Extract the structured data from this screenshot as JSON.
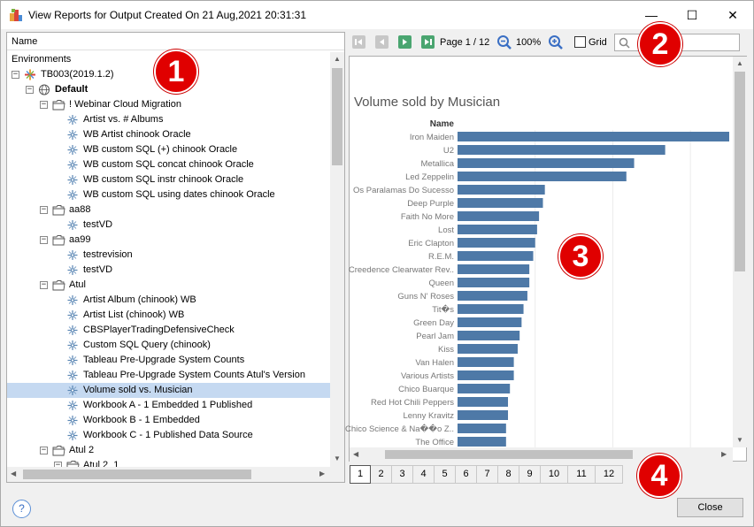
{
  "window": {
    "title": "View Reports for Output Created On 21 Aug,2021 20:31:31",
    "minimize_glyph": "—",
    "maximize_glyph": "☐",
    "close_glyph": "✕"
  },
  "tree": {
    "column_header": "Name",
    "root_label": "Environments",
    "rows": [
      {
        "label": "TB003(2019.1.2)",
        "level": 0,
        "expander": "−",
        "icon": "server-icon"
      },
      {
        "label": "Default",
        "level": 1,
        "expander": "−",
        "icon": "globe-icon",
        "bold": true
      },
      {
        "label": "! Webinar Cloud Migration",
        "level": 2,
        "expander": "−",
        "icon": "folder-icon"
      },
      {
        "label": "Artist vs. # Albums",
        "level": 3,
        "icon": "workbook-icon"
      },
      {
        "label": "WB Artist chinook Oracle",
        "level": 3,
        "icon": "workbook-icon"
      },
      {
        "label": "WB custom SQL (+) chinook Oracle",
        "level": 3,
        "icon": "workbook-icon"
      },
      {
        "label": "WB custom SQL concat chinook Oracle",
        "level": 3,
        "icon": "workbook-icon"
      },
      {
        "label": "WB custom SQL instr chinook Oracle",
        "level": 3,
        "icon": "workbook-icon"
      },
      {
        "label": "WB custom SQL using dates chinook Oracle",
        "level": 3,
        "icon": "workbook-icon"
      },
      {
        "label": "aa88",
        "level": 2,
        "expander": "−",
        "icon": "folder-icon"
      },
      {
        "label": "testVD",
        "level": 3,
        "icon": "workbook-icon"
      },
      {
        "label": "aa99",
        "level": 2,
        "expander": "−",
        "icon": "folder-icon"
      },
      {
        "label": "testrevision",
        "level": 3,
        "icon": "workbook-icon"
      },
      {
        "label": "testVD",
        "level": 3,
        "icon": "workbook-icon"
      },
      {
        "label": "Atul",
        "level": 2,
        "expander": "−",
        "icon": "folder-icon"
      },
      {
        "label": "Artist Album (chinook) WB",
        "level": 3,
        "icon": "workbook-icon"
      },
      {
        "label": "Artist List (chinook) WB",
        "level": 3,
        "icon": "workbook-icon"
      },
      {
        "label": "CBSPlayerTradingDefensiveCheck",
        "level": 3,
        "icon": "workbook-icon"
      },
      {
        "label": "Custom SQL  Query (chinook)",
        "level": 3,
        "icon": "workbook-icon"
      },
      {
        "label": "Tableau Pre-Upgrade System Counts",
        "level": 3,
        "icon": "workbook-icon"
      },
      {
        "label": "Tableau Pre-Upgrade System Counts Atul's Version",
        "level": 3,
        "icon": "workbook-icon"
      },
      {
        "label": "Volume sold vs. Musician",
        "level": 3,
        "icon": "workbook-icon",
        "selected": true
      },
      {
        "label": "Workbook A - 1 Embedded 1 Published",
        "level": 3,
        "icon": "workbook-icon"
      },
      {
        "label": "Workbook B - 1 Embedded",
        "level": 3,
        "icon": "workbook-icon"
      },
      {
        "label": "Workbook C - 1 Published Data Source",
        "level": 3,
        "icon": "workbook-icon"
      },
      {
        "label": "Atul 2",
        "level": 2,
        "expander": "−",
        "icon": "folder-icon"
      },
      {
        "label": "Atul 2_1",
        "level": 3,
        "expander": "−",
        "icon": "folder-icon"
      }
    ]
  },
  "toolbar": {
    "page_label": "Page 1 / 12",
    "zoom_label": "100%",
    "grid_label": "Grid",
    "search_placeholder": ""
  },
  "chart_data": {
    "type": "bar",
    "orientation": "horizontal",
    "title": "Volume sold by Musician",
    "ylabel": "Name",
    "xlabel": "",
    "categories": [
      "Iron Maiden",
      "U2",
      "Metallica",
      "Led Zeppelin",
      "Os Paralamas Do Sucesso",
      "Deep Purple",
      "Faith No More",
      "Lost",
      "Eric Clapton",
      "R.E.M.",
      "Creedence Clearwater Rev..",
      "Queen",
      "Guns N' Roses",
      "Tit�s",
      "Green Day",
      "Pearl Jam",
      "Kiss",
      "Van Halen",
      "Various Artists",
      "Chico Buarque",
      "Red Hot Chili Peppers",
      "Lenny Kravitz",
      "Chico Science & Na��o Z..",
      "The Office"
    ],
    "values": [
      140,
      107,
      91,
      87,
      45,
      44,
      42,
      41,
      40,
      39,
      37,
      37,
      36,
      34,
      33,
      32,
      31,
      29,
      29,
      27,
      26,
      26,
      25,
      25
    ],
    "bar_color": "#4e79a7",
    "grid": true
  },
  "page_tabs": [
    "1",
    "2",
    "3",
    "4",
    "5",
    "6",
    "7",
    "8",
    "9",
    "10",
    "11",
    "12"
  ],
  "active_page": "1",
  "buttons": {
    "help": "?",
    "close": "Close"
  },
  "callouts": [
    "1",
    "2",
    "3",
    "4"
  ],
  "colors": {
    "selection": "#c5d9f1",
    "callout_red": "#e00000",
    "nav_active": "#4aa570"
  }
}
